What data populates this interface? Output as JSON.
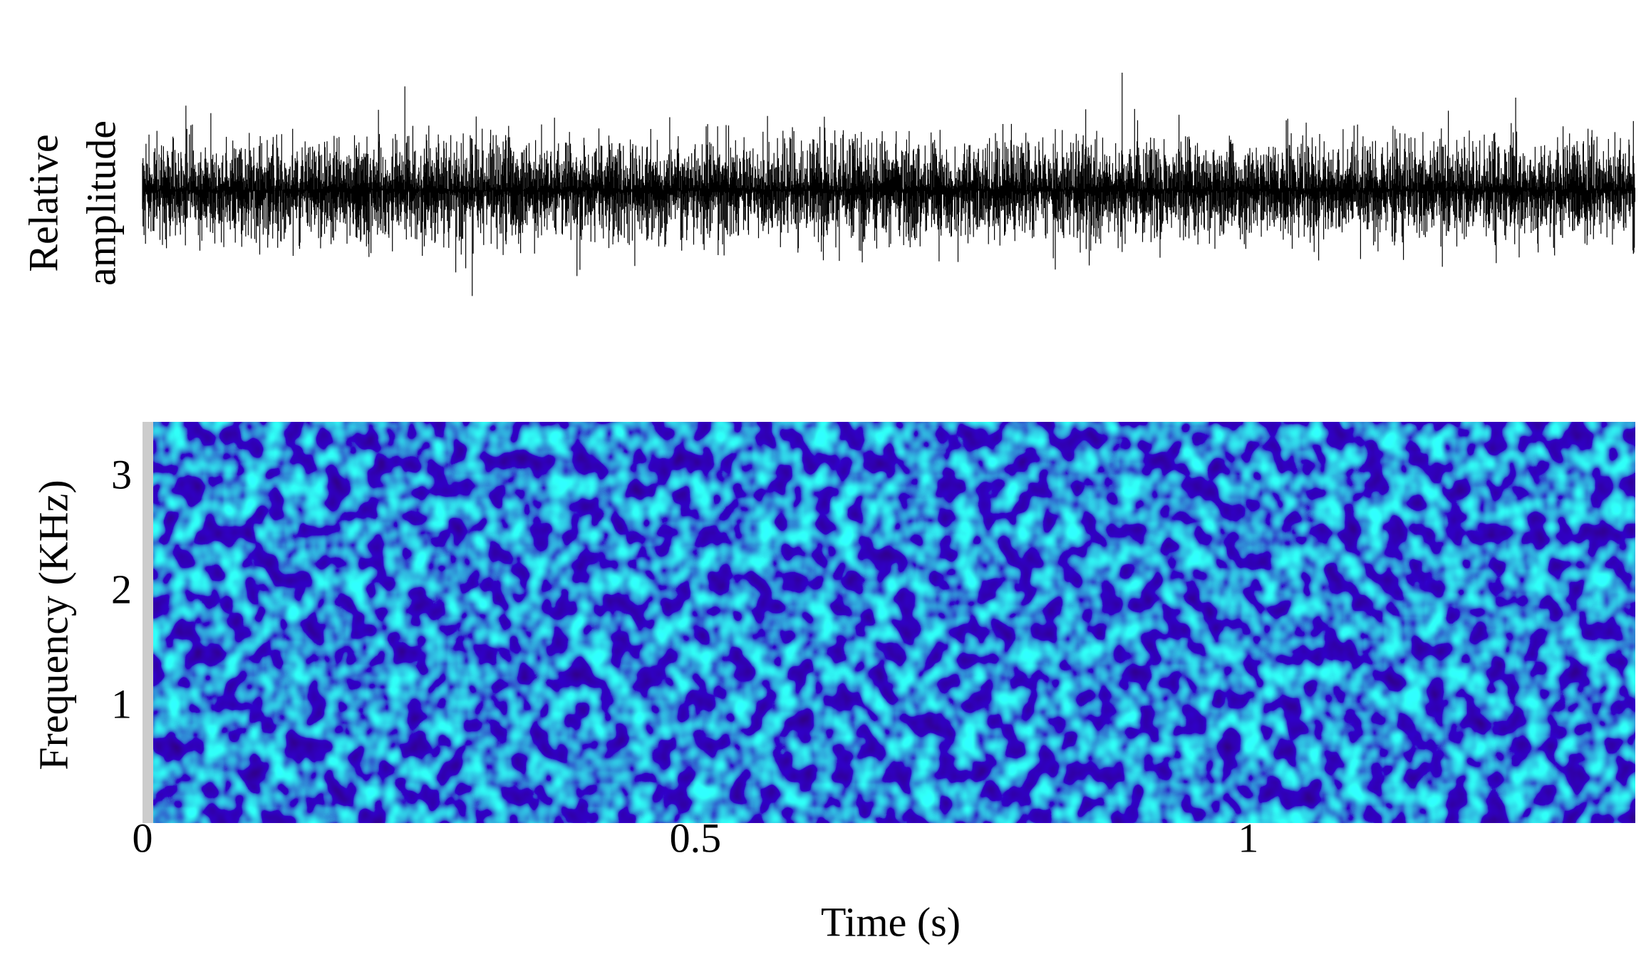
{
  "chart_data": {
    "type": "spectrogram",
    "waveform_label": [
      "Relative",
      "amplitude"
    ],
    "ylabel": "Frequency (KHz)",
    "xlabel": "Time (s)",
    "xlim": [
      0,
      1.35
    ],
    "xticks": [
      0,
      0.5,
      1
    ],
    "ylim": [
      0,
      3.5
    ],
    "yticks": [
      1,
      2,
      3
    ],
    "waveform_color": "#000000"
  }
}
